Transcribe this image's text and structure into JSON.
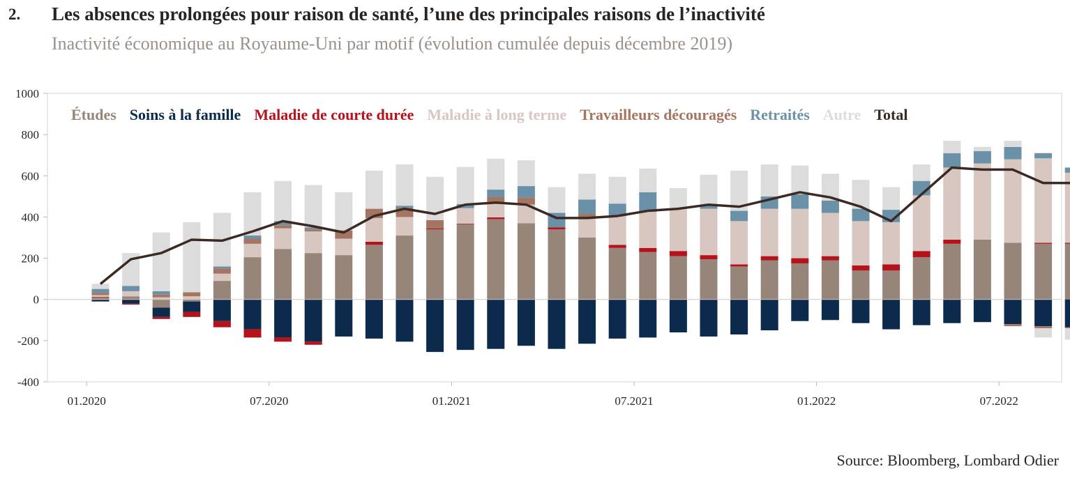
{
  "header": {
    "number": "2.",
    "title": "Les absences prolongées pour raison de santé, l’une des principales raisons de l’inactivité",
    "subtitle": "Inactivité économique au Royaume-Uni par motif (évolution cumulée depuis décembre 2019)"
  },
  "footer": {
    "source": "Source: Bloomberg, Lombard Odier"
  },
  "colors": {
    "etudes": "#978579",
    "soins": "#0c2a4c",
    "maladie_courte": "#b5121b",
    "maladie_long": "#d8c6c0",
    "decourages": "#a57562",
    "retraites": "#6b91a8",
    "autre": "#dcdcdc",
    "total": "#3b2a23"
  },
  "chart_data": {
    "type": "bar",
    "stacked": true,
    "ylim": [
      -400,
      1000
    ],
    "yticks": [
      "1000",
      "800",
      "600",
      "400",
      "200",
      "0",
      "-200",
      "-400"
    ],
    "xtick_labels": [
      "01.2020",
      "07.2020",
      "01.2021",
      "07.2021",
      "01.2022",
      "07.2022"
    ],
    "xtick_index": [
      0,
      6,
      12,
      18,
      24,
      30
    ],
    "legend_position": "top",
    "categories": [
      "01.2020",
      "02.2020",
      "03.2020",
      "04.2020",
      "05.2020",
      "06.2020",
      "07.2020",
      "08.2020",
      "09.2020",
      "10.2020",
      "11.2020",
      "12.2020",
      "01.2021",
      "02.2021",
      "03.2021",
      "04.2021",
      "05.2021",
      "06.2021",
      "07.2021",
      "08.2021",
      "09.2021",
      "10.2021",
      "11.2021",
      "12.2021",
      "01.2022",
      "02.2022",
      "03.2022",
      "04.2022",
      "05.2022",
      "06.2022",
      "07.2022",
      "08.2022",
      "09.2022"
    ],
    "series": [
      {
        "name": "Études",
        "key": "etudes",
        "values": [
          10,
          15,
          -40,
          -10,
          90,
          205,
          245,
          225,
          215,
          265,
          310,
          340,
          365,
          390,
          370,
          340,
          300,
          250,
          230,
          210,
          195,
          160,
          190,
          175,
          190,
          140,
          140,
          205,
          270,
          290,
          275,
          270,
          270
        ]
      },
      {
        "name": "Soins à la famille",
        "key": "soins",
        "values": [
          -10,
          -20,
          -45,
          -50,
          -105,
          -145,
          -185,
          -205,
          -180,
          -190,
          -205,
          -255,
          -245,
          -240,
          -225,
          -240,
          -215,
          -190,
          -185,
          -160,
          -180,
          -170,
          -150,
          -105,
          -100,
          -115,
          -145,
          -125,
          -115,
          -110,
          -120,
          -130,
          -135
        ]
      },
      {
        "name": "Maladie de courte durée",
        "key": "maladie_courte",
        "values": [
          3,
          -5,
          -10,
          -25,
          -30,
          -40,
          -20,
          -15,
          0,
          15,
          0,
          5,
          3,
          8,
          0,
          10,
          0,
          15,
          20,
          25,
          20,
          10,
          20,
          25,
          20,
          25,
          30,
          30,
          20,
          0,
          0,
          5,
          5
        ]
      },
      {
        "name": "Maladie à long terme",
        "key": "maladie_long",
        "values": [
          8,
          25,
          10,
          15,
          35,
          65,
          100,
          105,
          80,
          115,
          90,
          0,
          75,
          70,
          90,
          0,
          95,
          140,
          175,
          200,
          225,
          210,
          230,
          240,
          210,
          215,
          205,
          270,
          350,
          370,
          405,
          410,
          340
        ]
      },
      {
        "name": "Travailleurs découragés",
        "key": "decourages",
        "values": [
          10,
          0,
          15,
          20,
          25,
          25,
          15,
          10,
          40,
          45,
          45,
          40,
          0,
          30,
          35,
          0,
          20,
          0,
          0,
          0,
          0,
          0,
          0,
          0,
          0,
          0,
          0,
          0,
          0,
          0,
          -10,
          -10,
          -5
        ]
      },
      {
        "name": "Retraités",
        "key": "retraites",
        "values": [
          20,
          25,
          15,
          0,
          10,
          15,
          20,
          10,
          0,
          0,
          10,
          0,
          20,
          35,
          55,
          70,
          70,
          60,
          95,
          0,
          20,
          50,
          60,
          70,
          60,
          60,
          60,
          70,
          70,
          60,
          60,
          25,
          25
        ]
      },
      {
        "name": "Autre",
        "key": "autre",
        "values": [
          25,
          160,
          285,
          340,
          260,
          210,
          195,
          205,
          185,
          185,
          200,
          210,
          180,
          150,
          125,
          125,
          125,
          130,
          115,
          105,
          145,
          195,
          155,
          140,
          130,
          140,
          110,
          80,
          60,
          20,
          30,
          -45,
          -55
        ]
      }
    ],
    "total": {
      "name": "Total",
      "key": "total",
      "values": [
        75,
        195,
        225,
        290,
        285,
        330,
        380,
        355,
        325,
        405,
        440,
        415,
        460,
        470,
        460,
        395,
        395,
        405,
        430,
        440,
        460,
        450,
        485,
        520,
        495,
        450,
        380,
        510,
        640,
        630,
        630,
        565,
        565
      ]
    }
  }
}
